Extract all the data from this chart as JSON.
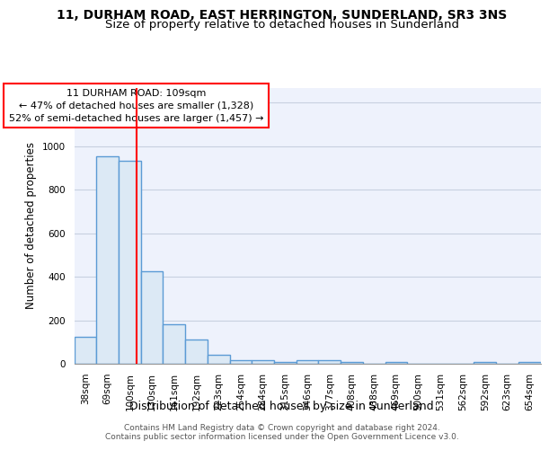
{
  "title": "11, DURHAM ROAD, EAST HERRINGTON, SUNDERLAND, SR3 3NS",
  "subtitle": "Size of property relative to detached houses in Sunderland",
  "xlabel": "Distribution of detached houses by size in Sunderland",
  "ylabel": "Number of detached properties",
  "categories": [
    "38sqm",
    "69sqm",
    "100sqm",
    "130sqm",
    "161sqm",
    "192sqm",
    "223sqm",
    "254sqm",
    "284sqm",
    "315sqm",
    "346sqm",
    "377sqm",
    "408sqm",
    "438sqm",
    "469sqm",
    "500sqm",
    "531sqm",
    "562sqm",
    "592sqm",
    "623sqm",
    "654sqm"
  ],
  "values": [
    125,
    955,
    935,
    425,
    180,
    112,
    42,
    18,
    15,
    10,
    15,
    15,
    10,
    0,
    10,
    0,
    0,
    0,
    10,
    0,
    10
  ],
  "bar_color": "#dce9f5",
  "bar_edge_color": "#5b9bd5",
  "bar_linewidth": 1.0,
  "annotation_text": "11 DURHAM ROAD: 109sqm\n← 47% of detached houses are smaller (1,328)\n52% of semi-detached houses are larger (1,457) →",
  "annotation_box_color": "white",
  "annotation_box_edge_color": "red",
  "ylim": [
    0,
    1270
  ],
  "yticks": [
    0,
    200,
    400,
    600,
    800,
    1000,
    1200
  ],
  "grid_color": "#c8d0e0",
  "bg_color": "#eef2fc",
  "footer": "Contains HM Land Registry data © Crown copyright and database right 2024.\nContains public sector information licensed under the Open Government Licence v3.0.",
  "title_fontsize": 10,
  "subtitle_fontsize": 9.5,
  "xlabel_fontsize": 9,
  "ylabel_fontsize": 8.5,
  "tick_fontsize": 7.5,
  "annotation_fontsize": 8,
  "footer_fontsize": 6.5
}
